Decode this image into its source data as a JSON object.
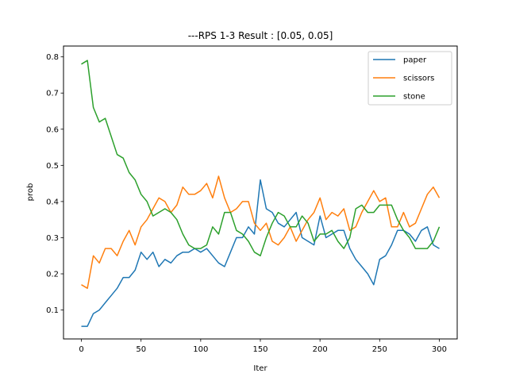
{
  "chart_data": {
    "type": "line",
    "title": "---RPS 1-3 Result : [0.05, 0.05]",
    "xlabel": "Iter",
    "ylabel": "prob",
    "xlim": [
      -15,
      315
    ],
    "ylim": [
      0.02,
      0.83
    ],
    "xticks": [
      0,
      50,
      100,
      150,
      200,
      250,
      300
    ],
    "yticks": [
      0.1,
      0.2,
      0.3,
      0.4,
      0.5,
      0.6,
      0.7,
      0.8
    ],
    "grid": false,
    "legend_position": "top-right",
    "series": [
      {
        "name": "paper",
        "color": "#1f77b4",
        "points": [
          [
            0,
            0.055
          ],
          [
            5,
            0.055
          ],
          [
            10,
            0.09
          ],
          [
            15,
            0.1
          ],
          [
            20,
            0.12
          ],
          [
            25,
            0.14
          ],
          [
            30,
            0.16
          ],
          [
            35,
            0.19
          ],
          [
            40,
            0.19
          ],
          [
            45,
            0.21
          ],
          [
            50,
            0.26
          ],
          [
            55,
            0.24
          ],
          [
            60,
            0.26
          ],
          [
            65,
            0.22
          ],
          [
            70,
            0.24
          ],
          [
            75,
            0.23
          ],
          [
            80,
            0.25
          ],
          [
            85,
            0.26
          ],
          [
            90,
            0.26
          ],
          [
            95,
            0.27
          ],
          [
            100,
            0.26
          ],
          [
            105,
            0.27
          ],
          [
            110,
            0.25
          ],
          [
            115,
            0.23
          ],
          [
            120,
            0.22
          ],
          [
            125,
            0.26
          ],
          [
            130,
            0.3
          ],
          [
            135,
            0.3
          ],
          [
            140,
            0.33
          ],
          [
            145,
            0.31
          ],
          [
            150,
            0.46
          ],
          [
            155,
            0.38
          ],
          [
            160,
            0.37
          ],
          [
            165,
            0.34
          ],
          [
            170,
            0.33
          ],
          [
            175,
            0.35
          ],
          [
            180,
            0.37
          ],
          [
            185,
            0.3
          ],
          [
            190,
            0.29
          ],
          [
            195,
            0.28
          ],
          [
            200,
            0.36
          ],
          [
            205,
            0.3
          ],
          [
            210,
            0.31
          ],
          [
            215,
            0.32
          ],
          [
            220,
            0.32
          ],
          [
            225,
            0.27
          ],
          [
            230,
            0.24
          ],
          [
            235,
            0.22
          ],
          [
            240,
            0.2
          ],
          [
            245,
            0.17
          ],
          [
            250,
            0.24
          ],
          [
            255,
            0.25
          ],
          [
            260,
            0.28
          ],
          [
            265,
            0.32
          ],
          [
            270,
            0.32
          ],
          [
            275,
            0.31
          ],
          [
            280,
            0.29
          ],
          [
            285,
            0.32
          ],
          [
            290,
            0.33
          ],
          [
            295,
            0.28
          ],
          [
            300,
            0.27
          ]
        ]
      },
      {
        "name": "scissors",
        "color": "#ff7f0e",
        "points": [
          [
            0,
            0.17
          ],
          [
            5,
            0.16
          ],
          [
            10,
            0.25
          ],
          [
            15,
            0.23
          ],
          [
            20,
            0.27
          ],
          [
            25,
            0.27
          ],
          [
            30,
            0.25
          ],
          [
            35,
            0.29
          ],
          [
            40,
            0.32
          ],
          [
            45,
            0.28
          ],
          [
            50,
            0.33
          ],
          [
            55,
            0.35
          ],
          [
            60,
            0.38
          ],
          [
            65,
            0.41
          ],
          [
            70,
            0.4
          ],
          [
            75,
            0.37
          ],
          [
            80,
            0.39
          ],
          [
            85,
            0.44
          ],
          [
            90,
            0.42
          ],
          [
            95,
            0.42
          ],
          [
            100,
            0.43
          ],
          [
            105,
            0.45
          ],
          [
            110,
            0.41
          ],
          [
            115,
            0.47
          ],
          [
            120,
            0.41
          ],
          [
            125,
            0.37
          ],
          [
            130,
            0.38
          ],
          [
            135,
            0.4
          ],
          [
            140,
            0.4
          ],
          [
            145,
            0.34
          ],
          [
            150,
            0.32
          ],
          [
            155,
            0.34
          ],
          [
            160,
            0.29
          ],
          [
            165,
            0.28
          ],
          [
            170,
            0.3
          ],
          [
            175,
            0.33
          ],
          [
            180,
            0.29
          ],
          [
            185,
            0.32
          ],
          [
            190,
            0.35
          ],
          [
            195,
            0.37
          ],
          [
            200,
            0.41
          ],
          [
            205,
            0.35
          ],
          [
            210,
            0.37
          ],
          [
            215,
            0.36
          ],
          [
            220,
            0.38
          ],
          [
            225,
            0.32
          ],
          [
            230,
            0.33
          ],
          [
            235,
            0.37
          ],
          [
            240,
            0.4
          ],
          [
            245,
            0.43
          ],
          [
            250,
            0.4
          ],
          [
            255,
            0.41
          ],
          [
            260,
            0.33
          ],
          [
            265,
            0.33
          ],
          [
            270,
            0.37
          ],
          [
            275,
            0.33
          ],
          [
            280,
            0.34
          ],
          [
            285,
            0.38
          ],
          [
            290,
            0.42
          ],
          [
            295,
            0.44
          ],
          [
            300,
            0.41
          ]
        ]
      },
      {
        "name": "stone",
        "color": "#2ca02c",
        "points": [
          [
            0,
            0.78
          ],
          [
            5,
            0.79
          ],
          [
            10,
            0.66
          ],
          [
            15,
            0.62
          ],
          [
            20,
            0.63
          ],
          [
            25,
            0.58
          ],
          [
            30,
            0.53
          ],
          [
            35,
            0.52
          ],
          [
            40,
            0.48
          ],
          [
            45,
            0.46
          ],
          [
            50,
            0.42
          ],
          [
            55,
            0.4
          ],
          [
            60,
            0.36
          ],
          [
            65,
            0.37
          ],
          [
            70,
            0.38
          ],
          [
            75,
            0.37
          ],
          [
            80,
            0.35
          ],
          [
            85,
            0.31
          ],
          [
            90,
            0.28
          ],
          [
            95,
            0.27
          ],
          [
            100,
            0.27
          ],
          [
            105,
            0.28
          ],
          [
            110,
            0.33
          ],
          [
            115,
            0.31
          ],
          [
            120,
            0.37
          ],
          [
            125,
            0.37
          ],
          [
            130,
            0.32
          ],
          [
            135,
            0.31
          ],
          [
            140,
            0.29
          ],
          [
            145,
            0.26
          ],
          [
            150,
            0.25
          ],
          [
            155,
            0.3
          ],
          [
            160,
            0.34
          ],
          [
            165,
            0.37
          ],
          [
            170,
            0.36
          ],
          [
            175,
            0.33
          ],
          [
            180,
            0.33
          ],
          [
            185,
            0.36
          ],
          [
            190,
            0.34
          ],
          [
            195,
            0.29
          ],
          [
            200,
            0.31
          ],
          [
            205,
            0.31
          ],
          [
            210,
            0.32
          ],
          [
            215,
            0.29
          ],
          [
            220,
            0.27
          ],
          [
            225,
            0.3
          ],
          [
            230,
            0.38
          ],
          [
            235,
            0.39
          ],
          [
            240,
            0.37
          ],
          [
            245,
            0.37
          ],
          [
            250,
            0.39
          ],
          [
            255,
            0.39
          ],
          [
            260,
            0.39
          ],
          [
            265,
            0.35
          ],
          [
            270,
            0.32
          ],
          [
            275,
            0.3
          ],
          [
            280,
            0.27
          ],
          [
            285,
            0.27
          ],
          [
            290,
            0.27
          ],
          [
            295,
            0.29
          ],
          [
            300,
            0.33
          ]
        ]
      }
    ]
  }
}
